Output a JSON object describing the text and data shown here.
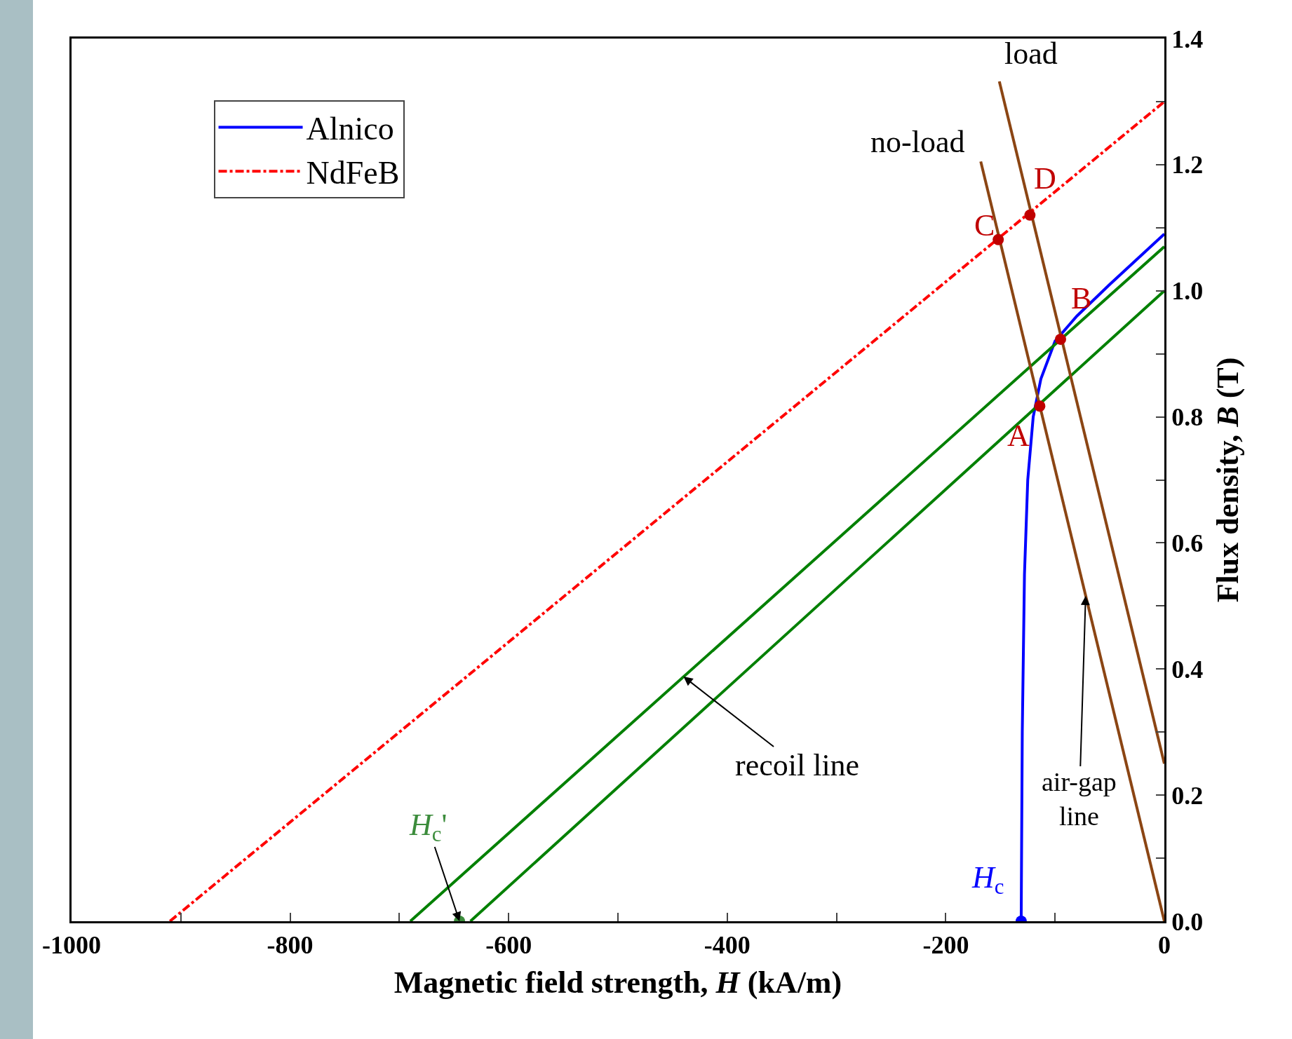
{
  "chart_data": {
    "type": "line",
    "xlabel": "Magnetic field strength, H (kA/m)",
    "ylabel": "Flux density, B (T)",
    "xlim": [
      -1000,
      0
    ],
    "ylim": [
      0,
      1.4
    ],
    "xticks": [
      {
        "value": -1000,
        "label": "-1000"
      },
      {
        "value": -900,
        "label": null
      },
      -800,
      {
        "value": -700,
        "label": null
      },
      -600,
      {
        "value": -500,
        "label": null
      },
      -400,
      {
        "value": -300,
        "label": null
      },
      -200,
      {
        "value": -100,
        "label": null
      },
      0
    ],
    "yticks": [
      {
        "value": 0,
        "label": "0.0"
      },
      {
        "value": 0.1,
        "label": null
      },
      0.2,
      {
        "value": 0.3,
        "label": null
      },
      0.4,
      {
        "value": 0.5,
        "label": null
      },
      0.6,
      {
        "value": 0.7,
        "label": null
      },
      0.8,
      {
        "value": 0.9,
        "label": null
      },
      {
        "value": 1,
        "label": "1.0"
      },
      {
        "value": 1.1,
        "label": null
      },
      1.2,
      {
        "value": 1.3,
        "label": null
      },
      1.4
    ],
    "grid": false,
    "legend": "top left",
    "series": [
      {
        "name": "Alnico",
        "color": "#0000ff",
        "line_style": "solid",
        "x": [
          -131,
          -130,
          -128,
          -125,
          -120,
          -113,
          -100,
          -80,
          -50,
          0
        ],
        "values": [
          0,
          0.3,
          0.55,
          0.7,
          0.8,
          0.86,
          0.92,
          0.96,
          1.01,
          1.09
        ]
      },
      {
        "name": "NdFeB",
        "color": "#ff0000",
        "line_style": "dashdot",
        "x": [
          -910,
          0
        ],
        "values": [
          0,
          1.3
        ]
      },
      {
        "color": "#008000",
        "line_style": "solid",
        "x": [
          -690,
          0
        ],
        "values": [
          0,
          1.07
        ]
      },
      {
        "color": "#008000",
        "line_style": "solid",
        "x": [
          -635,
          0
        ],
        "values": [
          0,
          1.0
        ]
      },
      {
        "color": "#8b4513",
        "line_style": "solid",
        "x": [
          -168,
          0
        ],
        "values": [
          1.205,
          0
        ]
      },
      {
        "color": "#8b4513",
        "line_style": "solid",
        "x": [
          -151,
          0
        ],
        "values": [
          1.332,
          0.25
        ]
      },
      {
        "type": "scatter",
        "marker": "circle",
        "color": "#c00000",
        "x": [
          -114,
          -95,
          -152,
          -123
        ],
        "values": [
          0.817,
          0.923,
          1.081,
          1.12
        ]
      },
      {
        "type": "scatter",
        "marker": "circle",
        "color": "#0000ff",
        "x": [
          -131
        ],
        "values": [
          0
        ]
      },
      {
        "type": "scatter",
        "marker": "circle",
        "color": "#3c8c3c",
        "x": [
          -645
        ],
        "values": [
          0
        ]
      }
    ],
    "annotations": [
      {
        "text": "A",
        "x": -114,
        "y": 0.817
      },
      {
        "text": "B",
        "x": -95,
        "y": 0.923
      },
      {
        "text": "C",
        "x": -152,
        "y": 1.081
      },
      {
        "text": "D",
        "x": -123,
        "y": 1.12
      },
      {
        "text": "load",
        "x": -151,
        "y": 1.332
      },
      {
        "text": "no-load",
        "x": -168,
        "y": 1.205
      },
      {
        "text": "recoil line",
        "x": -440,
        "y": 0.388
      },
      {
        "text": "air-gap line",
        "x": -72,
        "y": 0.516
      },
      {
        "text": "H$_{c}$'",
        "x": -645,
        "y": 0
      },
      {
        "text": "H$_{c}$",
        "x": -131,
        "y": 0
      }
    ]
  }
}
